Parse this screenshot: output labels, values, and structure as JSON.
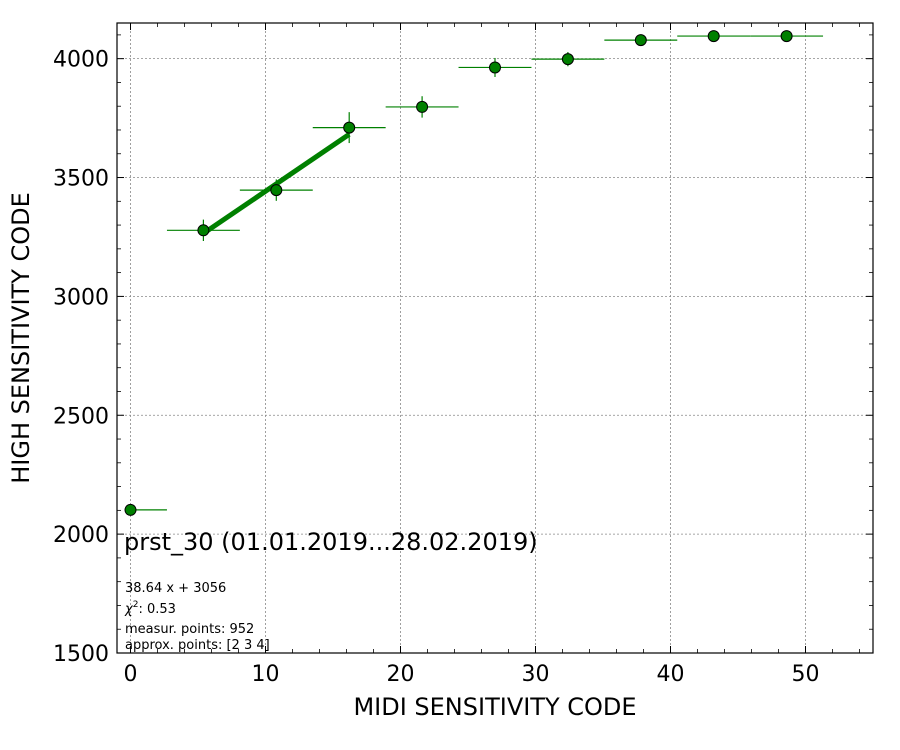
{
  "chart_data": {
    "type": "scatter",
    "title": "prst_30 (01.01.2019...28.02.2019)",
    "xlabel": "MIDI SENSITIVITY CODE",
    "ylabel": "HIGH SENSITIVITY CODE",
    "xlim": [
      -1,
      55
    ],
    "ylim": [
      1500,
      4150
    ],
    "xticks": [
      0,
      10,
      20,
      30,
      40,
      50
    ],
    "yticks": [
      1500,
      2000,
      2500,
      3000,
      3500,
      4000
    ],
    "grid": true,
    "series": [
      {
        "marker": "circle",
        "color": "#008000",
        "points": [
          {
            "x": 0.0,
            "y": 2102,
            "xerr": [
              0.0,
              2.7
            ],
            "yerr": 0
          },
          {
            "x": 5.4,
            "y": 3278,
            "xerr": [
              2.7,
              2.7
            ],
            "yerr": 45
          },
          {
            "x": 10.8,
            "y": 3447,
            "xerr": [
              2.7,
              2.7
            ],
            "yerr": 45
          },
          {
            "x": 16.2,
            "y": 3710,
            "xerr": [
              2.7,
              2.7
            ],
            "yerr": 65
          },
          {
            "x": 21.6,
            "y": 3797,
            "xerr": [
              2.7,
              2.7
            ],
            "yerr": 45
          },
          {
            "x": 27.0,
            "y": 3963,
            "xerr": [
              2.7,
              2.7
            ],
            "yerr": 40
          },
          {
            "x": 32.4,
            "y": 3998,
            "xerr": [
              2.7,
              2.7
            ],
            "yerr": 30
          },
          {
            "x": 37.8,
            "y": 4078,
            "xerr": [
              2.7,
              2.7
            ],
            "yerr": 10
          },
          {
            "x": 43.2,
            "y": 4095,
            "xerr": [
              2.7,
              2.7
            ],
            "yerr": 8
          },
          {
            "x": 48.6,
            "y": 4095,
            "xerr": [
              2.7,
              2.7
            ],
            "yerr": 8
          }
        ]
      }
    ],
    "fit": {
      "slope": 38.64,
      "intercept": 3056,
      "x_range": [
        5.4,
        16.2
      ],
      "color": "#008000"
    },
    "annotations": {
      "fit_equation": "38.64 x + 3056",
      "chi2_label": "χ",
      "chi2_sup": "2",
      "chi2_value": ": 0.53",
      "measur_points": "measur. points: 952",
      "approx_points": "approx. points: [2 3 4]"
    }
  }
}
